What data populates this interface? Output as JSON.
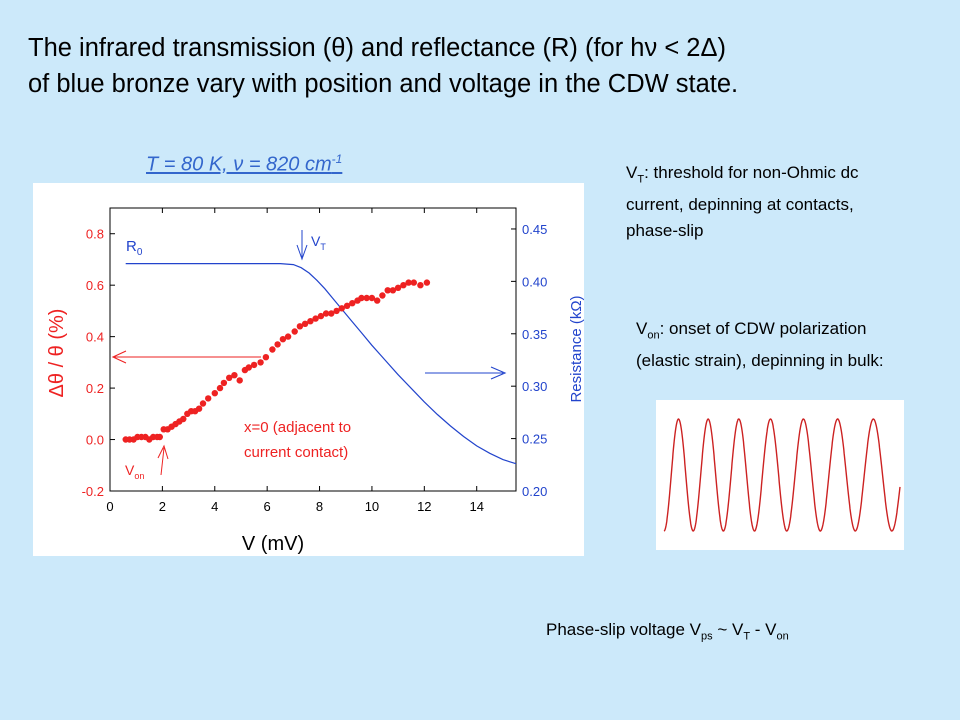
{
  "title": {
    "line1": "The infrared transmission (θ) and reflectance (R) (for hν < 2Δ)",
    "line2": "of blue bronze vary with position and voltage in the CDW state."
  },
  "condition": {
    "text": "T = 80 K, ν = 820 cm",
    "exp": "-1"
  },
  "notes": {
    "vt_sym": "V",
    "vt_sub": "T",
    "vt_text": ": threshold for non-Ohmic dc current, depinning at contacts, phase-slip",
    "von_sym": "V",
    "von_sub": "on",
    "von_text": ": onset of CDW polarization (elastic strain), depinning in bulk:"
  },
  "phase_slip": {
    "p1": "Phase-slip voltage V",
    "s1": "ps",
    "p2": " ~ V",
    "s2": "T",
    "p3": " - V",
    "s3": "on"
  },
  "colors": {
    "background": "#cce9fa",
    "theta_points": "#ee2222",
    "resistance_line": "#2244cc",
    "condition_text": "#3366cc",
    "wave": "#cc2222"
  },
  "chart_data": {
    "type": "scatter",
    "xlabel": "V  (mV)",
    "ylabel_left": "Δθ / θ  (%)",
    "ylabel_right": "Resistance (kΩ)",
    "xlim": [
      0,
      15.5
    ],
    "ylim_left": [
      -0.2,
      0.9
    ],
    "ylim_right": [
      0.2,
      0.47
    ],
    "xticks": [
      "0",
      "2",
      "4",
      "6",
      "8",
      "10",
      "12",
      "14"
    ],
    "yticks_left": [
      "-0.2",
      "0.0",
      "0.2",
      "0.4",
      "0.6",
      "0.8"
    ],
    "yticks_right": [
      "0.20",
      "0.25",
      "0.30",
      "0.35",
      "0.40",
      "0.45"
    ],
    "annotations": {
      "r0": "R",
      "r0_sub": "0",
      "vt": "V",
      "vt_sub": "T",
      "von": "V",
      "von_sub": "on",
      "x0_line1": "x=0 (adjacent to",
      "x0_line2": "current contact)"
    },
    "grid": false,
    "series": [
      {
        "axis": "left",
        "x": [
          0.6,
          0.75,
          0.9,
          1.05,
          1.2,
          1.35,
          1.5,
          1.65,
          1.8,
          1.9,
          2.05,
          2.2,
          2.35,
          2.5,
          2.65,
          2.8,
          2.95,
          3.1,
          3.25,
          3.4,
          3.55,
          3.75,
          4.0,
          4.2,
          4.35,
          4.55,
          4.75,
          4.95,
          5.15,
          5.3,
          5.5,
          5.75,
          5.95,
          6.2,
          6.4,
          6.6,
          6.8,
          7.05,
          7.25,
          7.45,
          7.65,
          7.85,
          8.05,
          8.25,
          8.45,
          8.65,
          8.85,
          9.05,
          9.25,
          9.45,
          9.6,
          9.8,
          10.0,
          10.2,
          10.4,
          10.6,
          10.8,
          11.0,
          11.2,
          11.4,
          11.6,
          11.85,
          12.1
        ],
        "y": [
          0.0,
          0.0,
          0.0,
          0.01,
          0.01,
          0.01,
          0.0,
          0.01,
          0.01,
          0.01,
          0.04,
          0.04,
          0.05,
          0.06,
          0.07,
          0.08,
          0.1,
          0.11,
          0.11,
          0.12,
          0.14,
          0.16,
          0.18,
          0.2,
          0.22,
          0.24,
          0.25,
          0.23,
          0.27,
          0.28,
          0.29,
          0.3,
          0.32,
          0.35,
          0.37,
          0.39,
          0.4,
          0.42,
          0.44,
          0.45,
          0.46,
          0.47,
          0.48,
          0.49,
          0.49,
          0.5,
          0.51,
          0.52,
          0.53,
          0.54,
          0.55,
          0.55,
          0.55,
          0.54,
          0.56,
          0.58,
          0.58,
          0.59,
          0.6,
          0.61,
          0.61,
          0.6,
          0.61
        ]
      },
      {
        "axis": "right",
        "x": [
          0.6,
          1,
          2,
          3,
          4,
          5,
          6,
          6.5,
          7,
          7.3,
          7.6,
          7.9,
          8.2,
          8.5,
          8.8,
          9.2,
          9.6,
          10.0,
          10.5,
          11.0,
          11.5,
          12.0,
          12.5,
          13.0,
          13.5,
          14.0,
          14.5,
          15.0,
          15.5
        ],
        "y": [
          0.417,
          0.417,
          0.417,
          0.417,
          0.417,
          0.417,
          0.417,
          0.417,
          0.416,
          0.413,
          0.408,
          0.401,
          0.393,
          0.384,
          0.375,
          0.363,
          0.351,
          0.339,
          0.325,
          0.311,
          0.298,
          0.285,
          0.273,
          0.262,
          0.252,
          0.243,
          0.236,
          0.23,
          0.226
        ]
      }
    ]
  }
}
